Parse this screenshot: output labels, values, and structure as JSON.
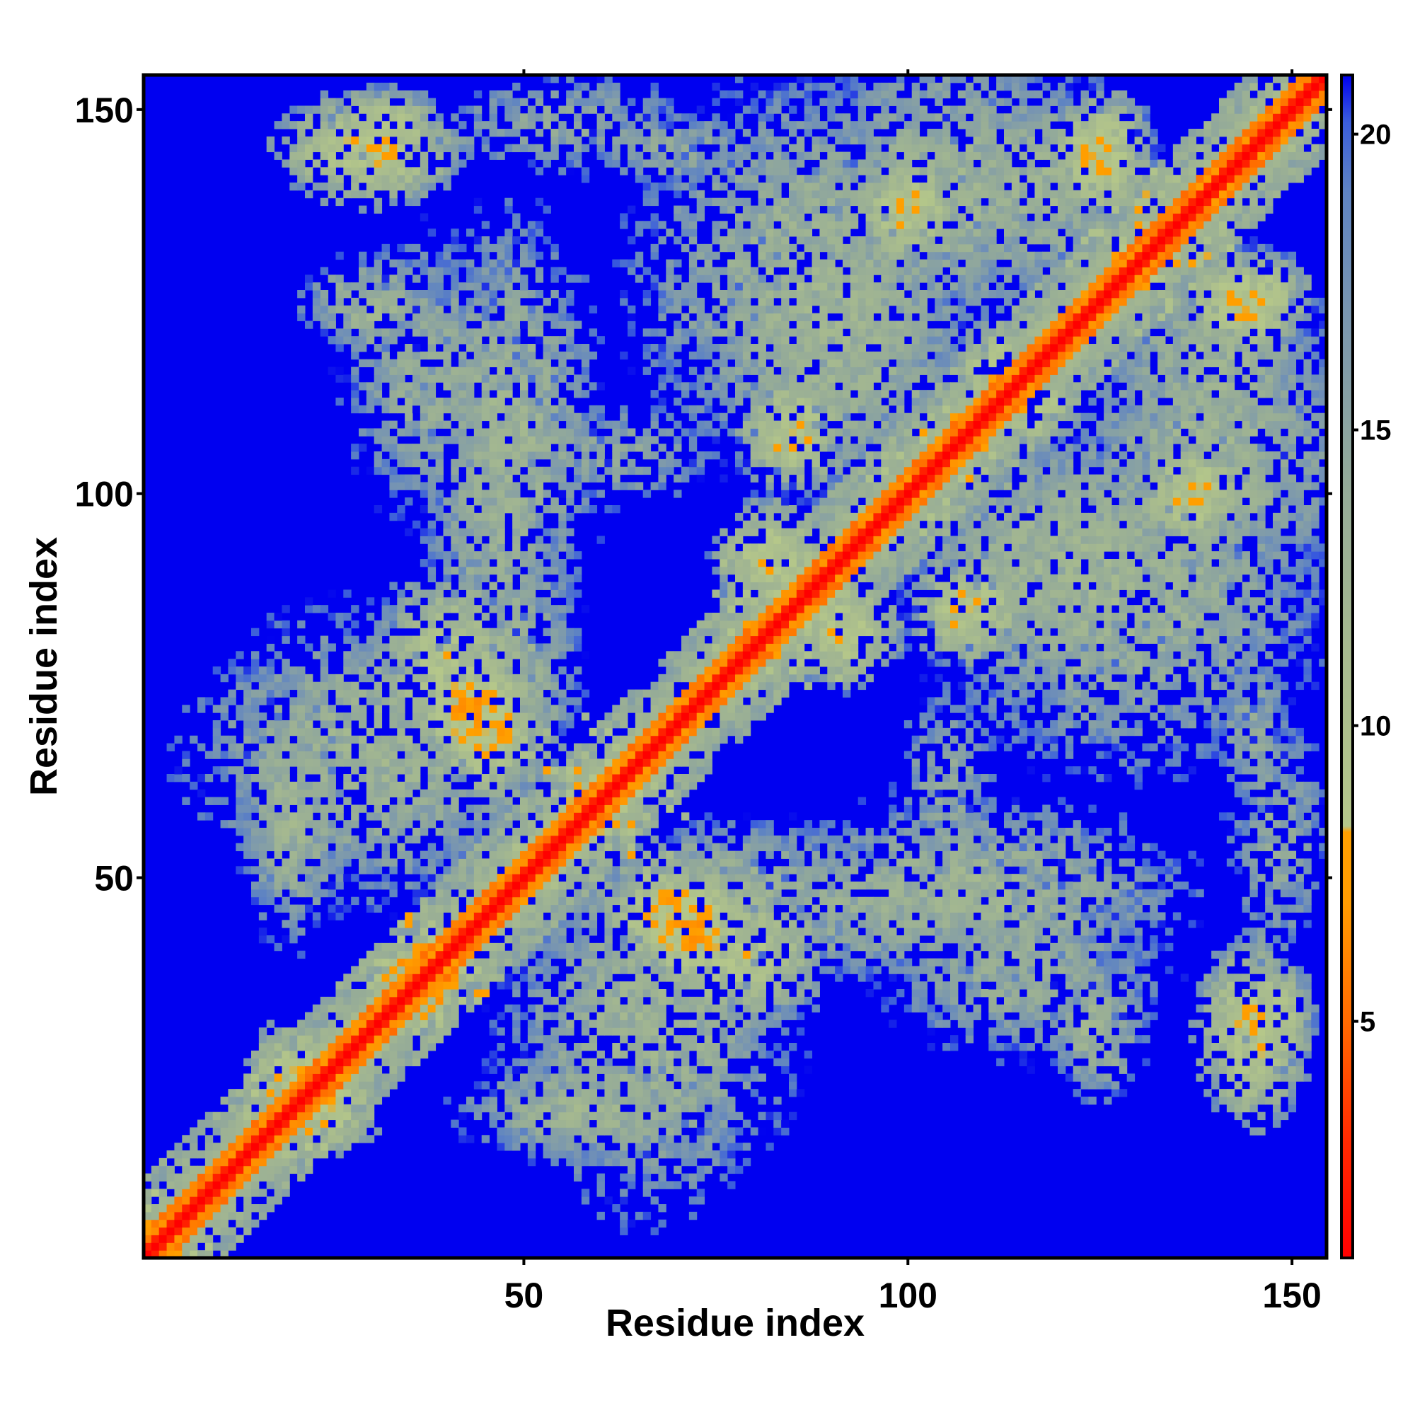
{
  "chart_data": {
    "type": "heatmap",
    "title": "",
    "xlabel": "Residue index",
    "ylabel": "Residue index",
    "n_residues": 154,
    "xlim": [
      1,
      154
    ],
    "ylim": [
      1,
      154
    ],
    "x_ticks": [
      50,
      100,
      150
    ],
    "y_ticks": [
      50,
      100,
      150
    ],
    "grid": false,
    "colorbar": {
      "ticks": [
        5,
        10,
        15,
        20
      ],
      "range": [
        1,
        21
      ],
      "stops": [
        {
          "value": 1,
          "color": "#ff0000"
        },
        {
          "value": 3,
          "color": "#ff2a00"
        },
        {
          "value": 5,
          "color": "#ff6a00"
        },
        {
          "value": 7,
          "color": "#ff9c00"
        },
        {
          "value": 8.2,
          "color": "#ffa000"
        },
        {
          "value": 8.3,
          "color": "#b5c78a"
        },
        {
          "value": 11,
          "color": "#a8bb8e"
        },
        {
          "value": 14,
          "color": "#95ab98"
        },
        {
          "value": 17,
          "color": "#7996b0"
        },
        {
          "value": 19,
          "color": "#5f84c2"
        },
        {
          "value": 20.2,
          "color": "#3b5edc"
        },
        {
          "value": 21,
          "color": "#0000f0"
        }
      ]
    },
    "diagonal_distance": 1,
    "background_distance": 21,
    "contact_clusters": [
      {
        "i": 1,
        "j": 1,
        "si": 12,
        "sj": 12,
        "d": 6,
        "w": 0.05
      },
      {
        "i": 18,
        "j": 18,
        "si": 10,
        "sj": 10,
        "d": 6,
        "w": 0.05
      },
      {
        "i": 38,
        "j": 38,
        "si": 14,
        "sj": 14,
        "d": 6,
        "w": 0.05
      },
      {
        "i": 60,
        "j": 60,
        "si": 18,
        "sj": 18,
        "d": 7,
        "w": 0.05
      },
      {
        "i": 85,
        "j": 85,
        "si": 16,
        "sj": 16,
        "d": 7,
        "w": 0.05
      },
      {
        "i": 105,
        "j": 105,
        "si": 14,
        "sj": 14,
        "d": 7,
        "w": 0.05
      },
      {
        "i": 132,
        "j": 132,
        "si": 16,
        "sj": 16,
        "d": 7,
        "w": 0.05
      },
      {
        "i": 148,
        "j": 148,
        "si": 8,
        "sj": 8,
        "d": 7,
        "w": 0.05
      },
      {
        "i": 30,
        "j": 66,
        "si": 20,
        "sj": 16,
        "d": 11,
        "w": 0.78
      },
      {
        "i": 45,
        "j": 70,
        "si": 6,
        "sj": 8,
        "d": 6,
        "w": 0.95
      },
      {
        "i": 58,
        "j": 20,
        "si": 14,
        "sj": 6,
        "d": 11,
        "w": 0.82
      },
      {
        "i": 75,
        "j": 48,
        "si": 22,
        "sj": 8,
        "d": 11,
        "w": 0.82
      },
      {
        "i": 72,
        "j": 43,
        "si": 6,
        "sj": 6,
        "d": 6,
        "w": 0.95
      },
      {
        "i": 32,
        "j": 148,
        "si": 6,
        "sj": 4,
        "d": 8,
        "w": 0.8
      },
      {
        "i": 30,
        "j": 123,
        "si": 5,
        "sj": 4,
        "d": 11,
        "w": 0.82
      },
      {
        "i": 55,
        "j": 148,
        "si": 16,
        "sj": 6,
        "d": 13,
        "w": 0.6
      },
      {
        "i": 48,
        "j": 108,
        "si": 10,
        "sj": 24,
        "d": 11,
        "w": 0.75
      },
      {
        "i": 88,
        "j": 128,
        "si": 20,
        "sj": 22,
        "d": 11,
        "w": 0.8
      },
      {
        "i": 105,
        "j": 140,
        "si": 16,
        "sj": 16,
        "d": 11,
        "w": 0.85
      },
      {
        "i": 120,
        "j": 92,
        "si": 18,
        "sj": 14,
        "d": 11,
        "w": 0.85
      },
      {
        "i": 140,
        "j": 118,
        "si": 12,
        "sj": 12,
        "d": 11,
        "w": 0.85
      },
      {
        "i": 95,
        "j": 46,
        "si": 30,
        "sj": 8,
        "d": 12,
        "w": 0.75
      },
      {
        "i": 115,
        "j": 38,
        "si": 16,
        "sj": 10,
        "d": 12,
        "w": 0.72
      },
      {
        "i": 145,
        "j": 30,
        "si": 6,
        "sj": 10,
        "d": 7,
        "w": 0.85
      },
      {
        "i": 125,
        "j": 30,
        "si": 5,
        "sj": 8,
        "d": 11,
        "w": 0.8
      },
      {
        "i": 145,
        "j": 70,
        "si": 5,
        "sj": 10,
        "d": 13,
        "w": 0.6
      },
      {
        "i": 105,
        "j": 62,
        "si": 6,
        "sj": 12,
        "d": 13,
        "w": 0.6
      },
      {
        "i": 78,
        "j": 40,
        "si": 10,
        "sj": 8,
        "d": 8,
        "w": 0.85
      },
      {
        "i": 92,
        "j": 82,
        "si": 6,
        "sj": 6,
        "d": 7,
        "w": 0.9
      },
      {
        "i": 108,
        "j": 85,
        "si": 6,
        "sj": 6,
        "d": 7,
        "w": 0.9
      },
      {
        "i": 137,
        "j": 100,
        "si": 6,
        "sj": 6,
        "d": 7,
        "w": 0.9
      },
      {
        "i": 125,
        "j": 145,
        "si": 6,
        "sj": 6,
        "d": 7,
        "w": 0.9
      },
      {
        "i": 142,
        "j": 125,
        "si": 5,
        "sj": 5,
        "d": 7,
        "w": 0.9
      },
      {
        "i": 25,
        "j": 20,
        "si": 5,
        "sj": 5,
        "d": 7,
        "w": 0.9
      },
      {
        "i": 112,
        "j": 116,
        "si": 5,
        "sj": 5,
        "d": 7,
        "w": 0.9
      }
    ]
  }
}
